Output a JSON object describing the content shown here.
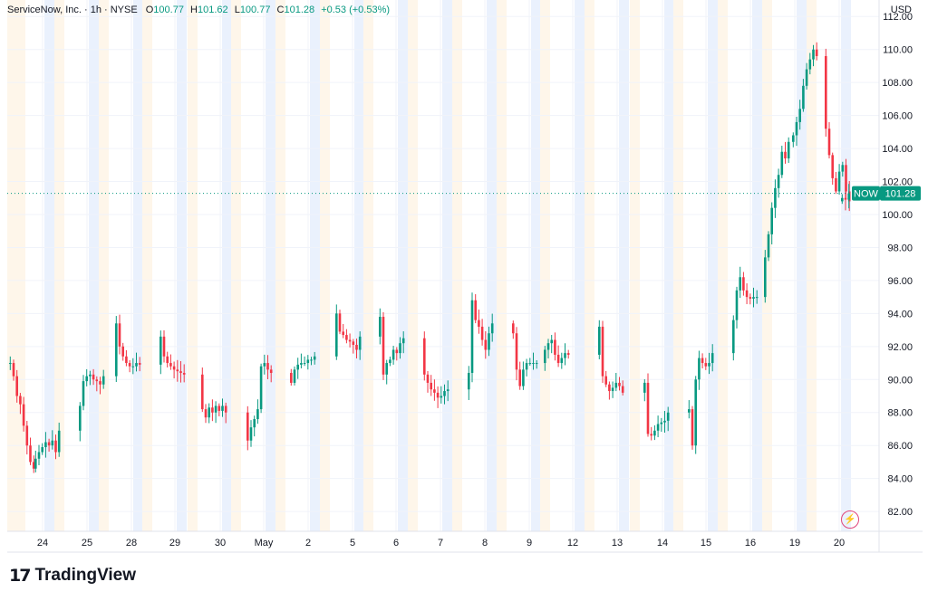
{
  "legend": {
    "title": "ServiceNow, Inc. · 1h · NYSE",
    "o_label": "O",
    "o": "100.77",
    "h_label": "H",
    "h": "101.62",
    "l_label": "L",
    "l": "100.77",
    "c_label": "C",
    "c": "101.28",
    "change": "+0.53 (+0.53%)"
  },
  "currency": "USD",
  "price_tag": {
    "symbol": "NOW",
    "price": "101.28"
  },
  "brand": {
    "mark": "17",
    "name": "TradingView"
  },
  "colors": {
    "up": "#089981",
    "down": "#f23645",
    "session_pre": "#fef6ea",
    "session_post": "#eaf1fd",
    "grid": "#f0f3fa"
  },
  "icons": {
    "bolt": "lightning-bolt-icon"
  },
  "chart_data": {
    "type": "candlestick",
    "ylim": [
      80.8,
      113.0
    ],
    "y_ticks": [
      82,
      84,
      86,
      88,
      90,
      92,
      94,
      96,
      98,
      100,
      102,
      104,
      106,
      108,
      110,
      112
    ],
    "y_tick_labels": [
      "82.00",
      "84.00",
      "86.00",
      "88.00",
      "90.00",
      "92.00",
      "94.00",
      "96.00",
      "98.00",
      "100.00",
      "102.00",
      "104.00",
      "106.00",
      "108.00",
      "110.00",
      "112.00"
    ],
    "last_price": 101.28,
    "days": [
      "24",
      "25",
      "28",
      "29",
      "30",
      "May",
      "2",
      "5",
      "6",
      "7",
      "8",
      "9",
      "12",
      "13",
      "14",
      "15",
      "16",
      "19",
      "20"
    ],
    "series_days": [
      {
        "day": "23",
        "closes": [
          91.0,
          90.2,
          89.0,
          88.5,
          87.2,
          86.0,
          85.0,
          84.6
        ]
      },
      {
        "day": "24",
        "closes": [
          85.2,
          85.6,
          85.9,
          86.2,
          86.0,
          86.3,
          85.6,
          86.9
        ]
      },
      {
        "day": "25",
        "closes": [
          88.4,
          89.9,
          90.2,
          90.3,
          90.0,
          89.9,
          89.7,
          90.2
        ]
      },
      {
        "day": "28",
        "closes": [
          93.4,
          92.0,
          91.4,
          91.0,
          90.8,
          90.8,
          91.0,
          90.9
        ]
      },
      {
        "day": "29",
        "closes": [
          92.6,
          91.4,
          91.0,
          90.8,
          90.6,
          90.5,
          90.4,
          90.3
        ]
      },
      {
        "day": "30",
        "closes": [
          88.2,
          87.7,
          88.3,
          88.0,
          88.4,
          88.1,
          88.4,
          88.0
        ]
      },
      {
        "day": "May",
        "closes": [
          86.3,
          87.1,
          87.6,
          88.2,
          90.8,
          91.0,
          90.6,
          90.4
        ]
      },
      {
        "day": "2",
        "closes": [
          89.8,
          90.6,
          90.9,
          91.0,
          91.0,
          91.2,
          91.2,
          91.4
        ]
      },
      {
        "day": "5",
        "closes": [
          94.0,
          92.9,
          92.7,
          92.4,
          92.3,
          92.1,
          91.8,
          92.6
        ]
      },
      {
        "day": "6",
        "closes": [
          93.8,
          90.3,
          91.0,
          91.2,
          91.8,
          91.6,
          92.2,
          92.5
        ]
      },
      {
        "day": "7",
        "closes": [
          90.3,
          89.8,
          89.4,
          89.2,
          88.9,
          89.0,
          89.3,
          89.4
        ]
      },
      {
        "day": "8",
        "closes": [
          90.4,
          94.8,
          93.6,
          93.2,
          92.4,
          91.8,
          92.8,
          93.4
        ]
      },
      {
        "day": "9",
        "closes": [
          92.8,
          90.6,
          89.6,
          90.6,
          91.0,
          91.0,
          91.0,
          91.0
        ]
      },
      {
        "day": "12",
        "closes": [
          91.8,
          92.2,
          92.4,
          91.5,
          91.0,
          91.3,
          91.6,
          91.5
        ]
      },
      {
        "day": "13",
        "closes": [
          93.2,
          90.2,
          89.7,
          89.3,
          89.5,
          89.8,
          89.6,
          89.2
        ]
      },
      {
        "day": "14",
        "closes": [
          89.8,
          86.7,
          86.6,
          86.9,
          87.3,
          87.4,
          87.5,
          88.0
        ]
      },
      {
        "day": "15",
        "closes": [
          88.2,
          86.0,
          90.0,
          91.3,
          91.0,
          90.8,
          91.0,
          91.6
        ]
      },
      {
        "day": "16",
        "closes": [
          93.6,
          95.4,
          96.2,
          95.4,
          95.0,
          94.9,
          95.0,
          95.0
        ]
      },
      {
        "day": "19",
        "closes": [
          97.4,
          98.8,
          100.4,
          101.6,
          102.4,
          103.8,
          103.4,
          104.4
        ]
      },
      {
        "day": "19b",
        "closes": [
          104.8,
          105.6,
          106.4,
          107.8,
          108.8,
          109.4,
          110.0,
          109.6
        ]
      },
      {
        "day": "20",
        "closes": [
          105.2,
          103.6,
          102.2,
          101.4,
          102.6,
          103.0,
          101.4,
          100.8
        ]
      },
      {
        "day": "20b",
        "closes": [
          101.0,
          100.9,
          101.28
        ]
      }
    ]
  }
}
